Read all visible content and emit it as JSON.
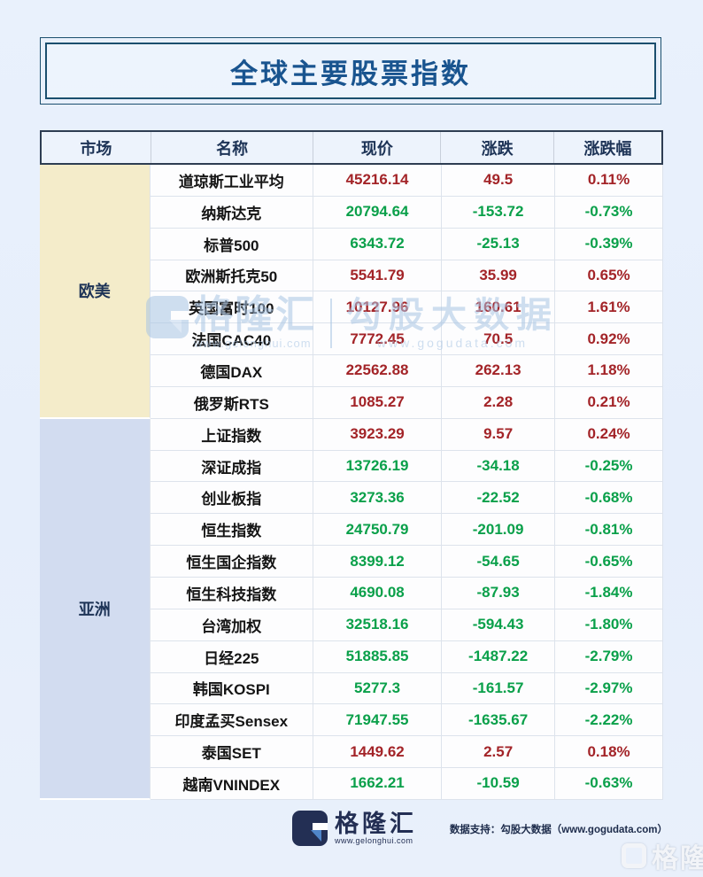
{
  "title": "全球主要股票指数",
  "colors": {
    "up": "#a32428",
    "down": "#0aa04a",
    "title_blue": "#19548f",
    "header_bg": "#edf3fc",
    "west_group_bg": "#f4ecca",
    "asia_group_bg": "#d2dcf0"
  },
  "chart_data": {
    "type": "table",
    "title": "全球主要股票指数",
    "columns": [
      "市场",
      "名称",
      "现价",
      "涨跌",
      "涨跌幅"
    ],
    "groups": [
      {
        "market": "欧美",
        "color": "#f4ecca",
        "rows": [
          {
            "name": "道琼斯工业平均",
            "price": "45216.14",
            "change": "49.5",
            "pct": "0.11%",
            "trend": "up"
          },
          {
            "name": "纳斯达克",
            "price": "20794.64",
            "change": "-153.72",
            "pct": "-0.73%",
            "trend": "down"
          },
          {
            "name": "标普500",
            "price": "6343.72",
            "change": "-25.13",
            "pct": "-0.39%",
            "trend": "down"
          },
          {
            "name": "欧洲斯托克50",
            "price": "5541.79",
            "change": "35.99",
            "pct": "0.65%",
            "trend": "up"
          },
          {
            "name": "英国富时100",
            "price": "10127.96",
            "change": "160.61",
            "pct": "1.61%",
            "trend": "up"
          },
          {
            "name": "法国CAC40",
            "price": "7772.45",
            "change": "70.5",
            "pct": "0.92%",
            "trend": "up"
          },
          {
            "name": "德国DAX",
            "price": "22562.88",
            "change": "262.13",
            "pct": "1.18%",
            "trend": "up"
          },
          {
            "name": "俄罗斯RTS",
            "price": "1085.27",
            "change": "2.28",
            "pct": "0.21%",
            "trend": "up"
          }
        ]
      },
      {
        "market": "亚洲",
        "color": "#d2dcf0",
        "rows": [
          {
            "name": "上证指数",
            "price": "3923.29",
            "change": "9.57",
            "pct": "0.24%",
            "trend": "up"
          },
          {
            "name": "深证成指",
            "price": "13726.19",
            "change": "-34.18",
            "pct": "-0.25%",
            "trend": "down"
          },
          {
            "name": "创业板指",
            "price": "3273.36",
            "change": "-22.52",
            "pct": "-0.68%",
            "trend": "down"
          },
          {
            "name": "恒生指数",
            "price": "24750.79",
            "change": "-201.09",
            "pct": "-0.81%",
            "trend": "down"
          },
          {
            "name": "恒生国企指数",
            "price": "8399.12",
            "change": "-54.65",
            "pct": "-0.65%",
            "trend": "down"
          },
          {
            "name": "恒生科技指数",
            "price": "4690.08",
            "change": "-87.93",
            "pct": "-1.84%",
            "trend": "down"
          },
          {
            "name": "台湾加权",
            "price": "32518.16",
            "change": "-594.43",
            "pct": "-1.80%",
            "trend": "down"
          },
          {
            "name": "日经225",
            "price": "51885.85",
            "change": "-1487.22",
            "pct": "-2.79%",
            "trend": "down"
          },
          {
            "name": "韩国KOSPI",
            "price": "5277.3",
            "change": "-161.57",
            "pct": "-2.97%",
            "trend": "down"
          },
          {
            "name": "印度孟买Sensex",
            "price": "71947.55",
            "change": "-1635.67",
            "pct": "-2.22%",
            "trend": "down"
          },
          {
            "name": "泰国SET",
            "price": "1449.62",
            "change": "2.57",
            "pct": "0.18%",
            "trend": "up"
          },
          {
            "name": "越南VNINDEX",
            "price": "1662.21",
            "change": "-10.59",
            "pct": "-0.63%",
            "trend": "down"
          }
        ]
      }
    ]
  },
  "watermark": {
    "brand": "格隆汇",
    "brand_url": "www.gelonghui.com",
    "partner": "勾股大数据",
    "partner_url": "www.gogudata.com",
    "corner": "格隆汇"
  },
  "footer": {
    "brand": "格隆汇",
    "brand_url": "www.gelonghui.com",
    "support": "数据支持：勾股大数据（www.gogudata.com）"
  }
}
